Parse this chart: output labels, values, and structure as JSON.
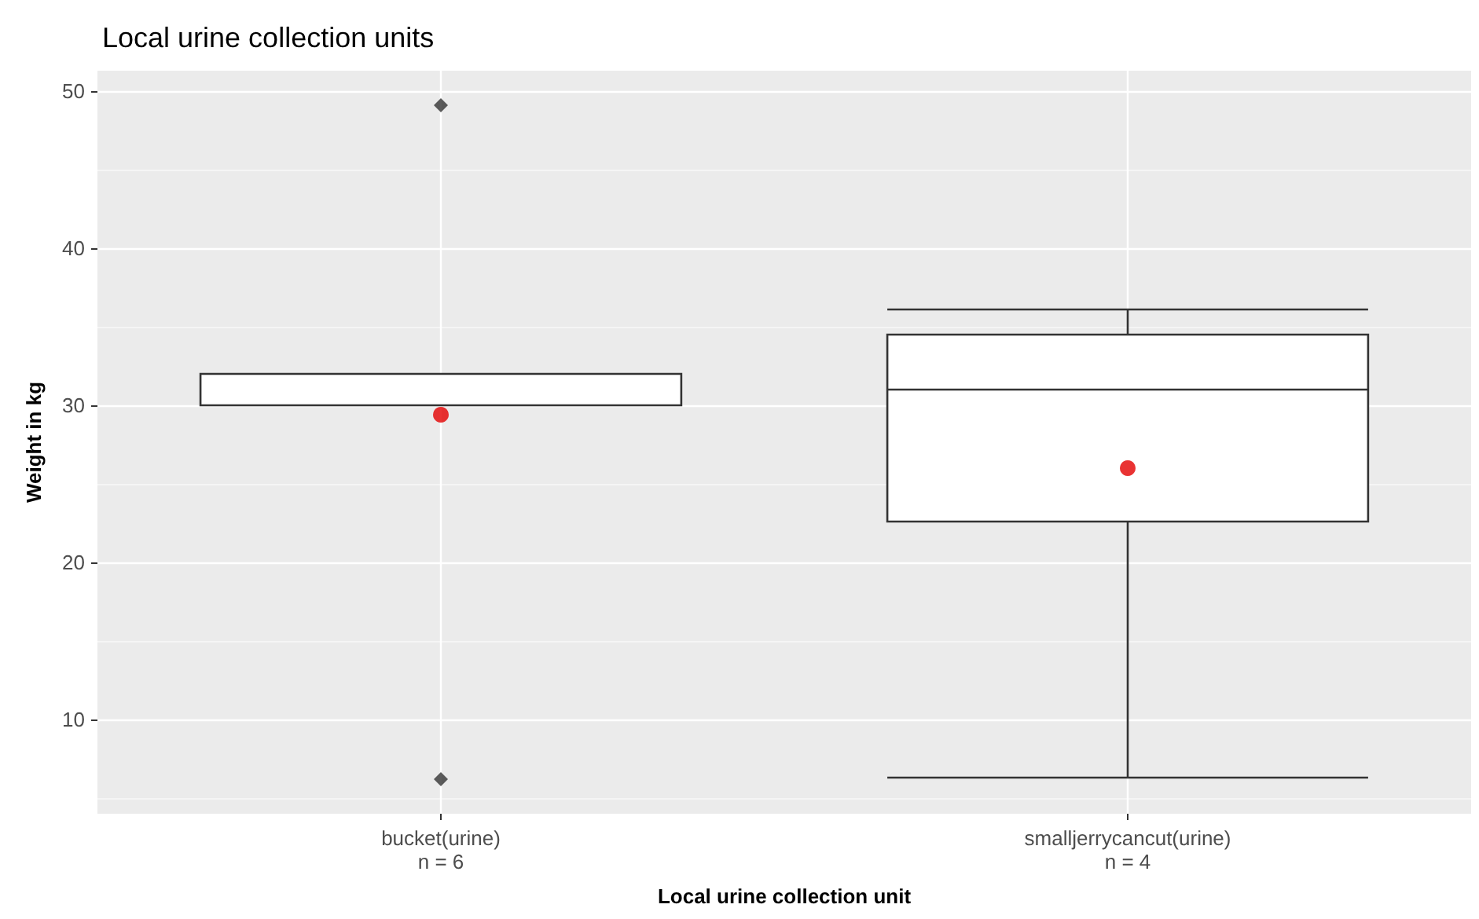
{
  "chart_data": {
    "type": "box",
    "title": "Local urine collection units",
    "xlabel": "Local urine collection unit",
    "ylabel": "Weight in kg",
    "categories": [
      "bucket(urine)\nn = 6",
      "smalljerrycancut(urine)\nn = 4"
    ],
    "boxes": [
      {
        "low": 30,
        "q1": 30,
        "median": 30,
        "q3": 32,
        "high": 32,
        "mean": 29.4,
        "outliers": [
          49.1,
          6.2
        ]
      },
      {
        "low": 6.3,
        "q1": 22.6,
        "median": 31,
        "q3": 34.5,
        "high": 36.1,
        "mean": 26.0
      }
    ],
    "ylim": [
      4,
      51.3
    ],
    "yticks": [
      10,
      20,
      30,
      40,
      50
    ],
    "grid": true
  }
}
